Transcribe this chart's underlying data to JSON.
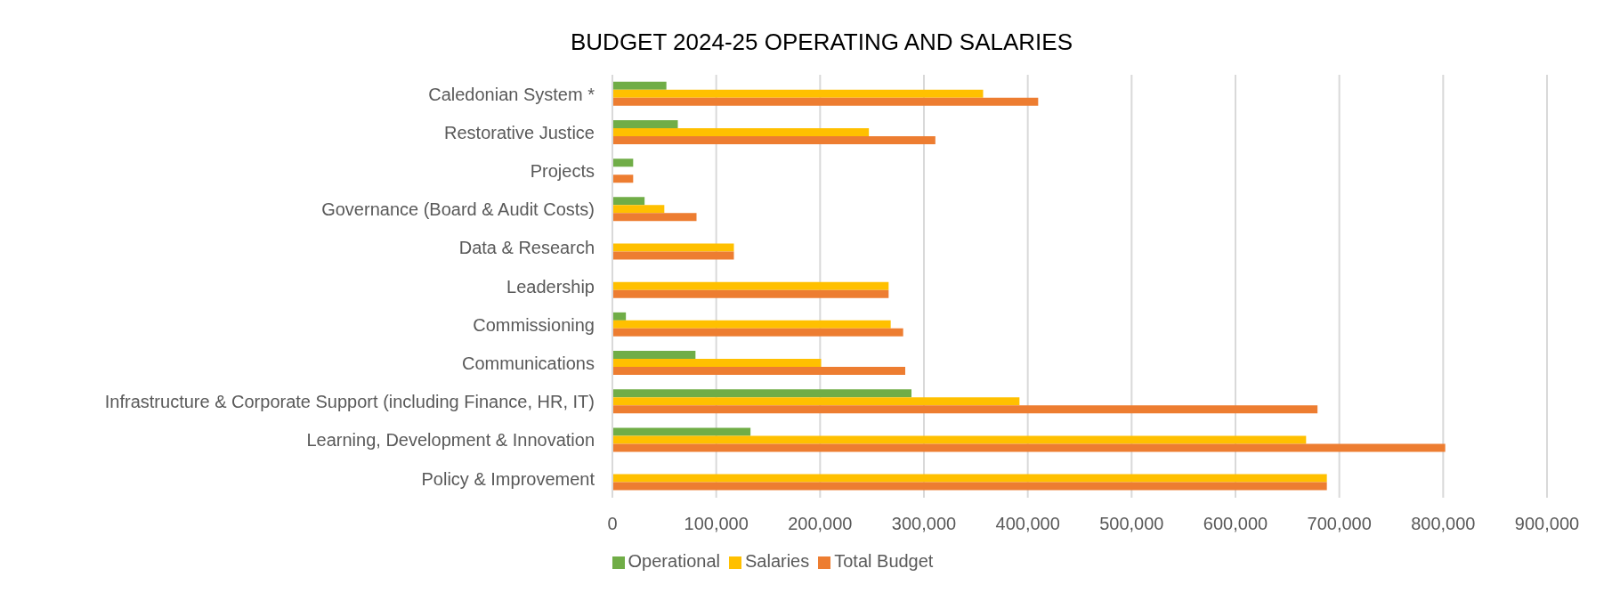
{
  "chart_data": {
    "type": "bar",
    "orientation": "horizontal",
    "title": "BUDGET 2024-25 OPERATING AND SALARIES",
    "categories": [
      "Caledonian System *",
      "Restorative Justice",
      "Projects",
      "Governance (Board & Audit Costs)",
      "Data & Research",
      "Leadership",
      "Commissioning",
      "Communications",
      "Infrastructure & Corporate Support (including Finance, HR, IT)",
      "Learning, Development & Innovation",
      "Policy & Improvement"
    ],
    "series": [
      {
        "name": "Operational",
        "color": "#70ad47",
        "values": [
          52000,
          63000,
          20000,
          31000,
          null,
          null,
          13000,
          80000,
          288000,
          133000,
          null
        ]
      },
      {
        "name": "Salaries",
        "color": "#ffc000",
        "values": [
          357000,
          247000,
          null,
          50000,
          117000,
          266000,
          268000,
          201000,
          392000,
          668000,
          688000
        ]
      },
      {
        "name": "Total Budget",
        "color": "#ed7d31",
        "values": [
          410000,
          311000,
          20000,
          81000,
          117000,
          266000,
          280000,
          282000,
          679000,
          802000,
          688000
        ]
      }
    ],
    "xlim": [
      0,
      900000
    ],
    "xticks": [
      0,
      {
        "value": 100000,
        "label": "100,000"
      },
      {
        "value": 200000,
        "label": "200,000"
      },
      {
        "value": 300000,
        "label": "300,000"
      },
      {
        "value": 400000,
        "label": "400,000"
      },
      {
        "value": 500000,
        "label": "500,000"
      },
      {
        "value": 600000,
        "label": "600,000"
      },
      {
        "value": 700000,
        "label": "700,000"
      },
      {
        "value": 800000,
        "label": "800,000"
      },
      {
        "value": 900000,
        "label": "900,000"
      }
    ],
    "grid": "x",
    "legend": "bottom"
  }
}
